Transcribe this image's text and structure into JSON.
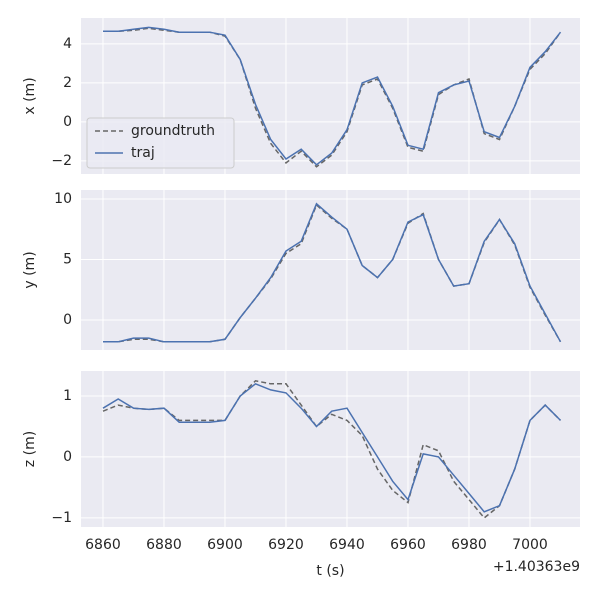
{
  "chart_data": [
    {
      "type": "line",
      "ylabel": "x (m)",
      "x": [
        6860,
        6865,
        6870,
        6875,
        6880,
        6885,
        6890,
        6895,
        6900,
        6905,
        6910,
        6915,
        6920,
        6925,
        6930,
        6935,
        6940,
        6945,
        6950,
        6955,
        6960,
        6965,
        6970,
        6975,
        6980,
        6985,
        6990,
        6995,
        7000,
        7005,
        7010
      ],
      "series": [
        {
          "name": "groundtruth",
          "color": "#666666",
          "linestyle": "dashed",
          "values": [
            4.65,
            4.65,
            4.7,
            4.8,
            4.7,
            4.6,
            4.6,
            4.6,
            4.4,
            3.2,
            0.7,
            -1.1,
            -2.1,
            -1.5,
            -2.3,
            -1.7,
            -0.5,
            1.9,
            2.2,
            0.7,
            -1.3,
            -1.5,
            1.4,
            1.9,
            2.2,
            -0.6,
            -0.9,
            0.8,
            2.7,
            3.5,
            4.6
          ]
        },
        {
          "name": "traj",
          "color": "#4c72b0",
          "linestyle": "solid",
          "values": [
            4.65,
            4.65,
            4.75,
            4.85,
            4.75,
            4.6,
            4.6,
            4.6,
            4.45,
            3.2,
            0.9,
            -0.9,
            -1.9,
            -1.4,
            -2.2,
            -1.6,
            -0.4,
            2.0,
            2.3,
            0.8,
            -1.2,
            -1.4,
            1.5,
            1.9,
            2.1,
            -0.5,
            -0.8,
            0.8,
            2.8,
            3.6,
            4.6
          ]
        }
      ],
      "xlim": [
        6852.8,
        7016.4
      ],
      "ylim": [
        -2.67,
        5.33
      ],
      "yticks": [
        {
          "value": -2,
          "label": "−2"
        },
        0,
        2,
        4
      ],
      "grid": true,
      "legend": "lower left"
    },
    {
      "type": "line",
      "ylabel": "y (m)",
      "x": [
        6860,
        6865,
        6870,
        6875,
        6880,
        6885,
        6890,
        6895,
        6900,
        6905,
        6910,
        6915,
        6920,
        6925,
        6930,
        6935,
        6940,
        6945,
        6950,
        6955,
        6960,
        6965,
        6970,
        6975,
        6980,
        6985,
        6990,
        6995,
        7000,
        7005,
        7010
      ],
      "series": [
        {
          "name": "groundtruth",
          "color": "#666666",
          "linestyle": "dashed",
          "values": [
            -1.8,
            -1.8,
            -1.6,
            -1.6,
            -1.8,
            -1.8,
            -1.8,
            -1.8,
            -1.6,
            0.2,
            1.8,
            3.4,
            5.5,
            6.3,
            9.5,
            8.4,
            7.5,
            4.5,
            3.5,
            5.0,
            8.0,
            8.8,
            5.0,
            2.8,
            3.0,
            6.4,
            8.3,
            6.2,
            2.7,
            0.4,
            -1.8
          ]
        },
        {
          "name": "traj",
          "color": "#4c72b0",
          "linestyle": "solid",
          "values": [
            -1.8,
            -1.8,
            -1.5,
            -1.5,
            -1.8,
            -1.8,
            -1.8,
            -1.8,
            -1.6,
            0.2,
            1.8,
            3.5,
            5.7,
            6.5,
            9.6,
            8.5,
            7.5,
            4.5,
            3.5,
            5.0,
            8.1,
            8.7,
            5.0,
            2.8,
            3.0,
            6.5,
            8.3,
            6.3,
            2.8,
            0.5,
            -1.8
          ]
        }
      ],
      "xlim": [
        6852.8,
        7016.4
      ],
      "ylim": [
        -2.48,
        10.74
      ],
      "yticks": [
        0,
        5,
        10
      ],
      "grid": true
    },
    {
      "type": "line",
      "ylabel": "z (m)",
      "xlabel": "t (s)",
      "x_offset": "+1.40363e9",
      "x": [
        6860,
        6865,
        6870,
        6875,
        6880,
        6885,
        6890,
        6895,
        6900,
        6905,
        6910,
        6915,
        6920,
        6925,
        6930,
        6935,
        6940,
        6945,
        6950,
        6955,
        6960,
        6965,
        6970,
        6975,
        6980,
        6985,
        6990,
        6995,
        7000,
        7005,
        7010
      ],
      "series": [
        {
          "name": "groundtruth",
          "color": "#666666",
          "linestyle": "dashed",
          "values": [
            0.75,
            0.85,
            0.8,
            0.78,
            0.8,
            0.6,
            0.6,
            0.6,
            0.6,
            1.0,
            1.25,
            1.2,
            1.2,
            0.85,
            0.5,
            0.7,
            0.6,
            0.35,
            -0.2,
            -0.55,
            -0.75,
            0.2,
            0.1,
            -0.4,
            -0.7,
            -1.0,
            -0.8,
            -0.2,
            0.6,
            0.85,
            0.6
          ]
        },
        {
          "name": "traj",
          "color": "#4c72b0",
          "linestyle": "solid",
          "values": [
            0.8,
            0.95,
            0.8,
            0.78,
            0.8,
            0.57,
            0.57,
            0.57,
            0.6,
            1.0,
            1.2,
            1.1,
            1.05,
            0.8,
            0.5,
            0.75,
            0.8,
            0.4,
            0.0,
            -0.4,
            -0.7,
            0.05,
            0.0,
            -0.3,
            -0.6,
            -0.9,
            -0.8,
            -0.2,
            0.6,
            0.85,
            0.6
          ]
        }
      ],
      "xlim": [
        6852.8,
        7016.4
      ],
      "ylim": [
        -1.15,
        1.41
      ],
      "xticks": [
        6860,
        6880,
        6900,
        6920,
        6940,
        6960,
        6980,
        7000
      ],
      "yticks": [
        {
          "value": -1,
          "label": "−1"
        },
        0,
        1
      ],
      "grid": true
    }
  ]
}
